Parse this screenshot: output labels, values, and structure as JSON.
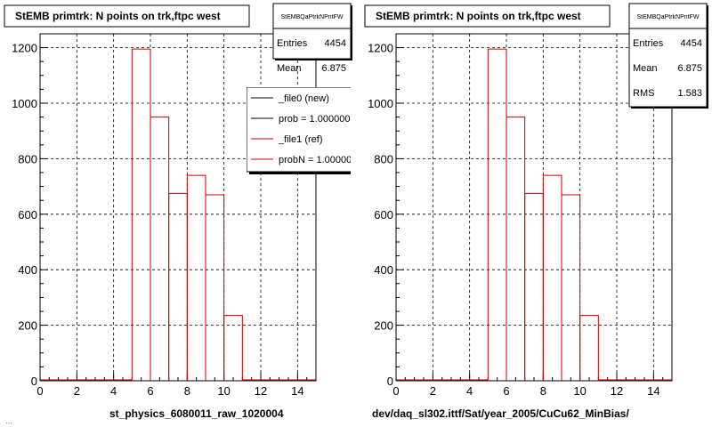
{
  "footer_note": "…",
  "chart_data": [
    {
      "type": "bar",
      "title": "StEMB primtrk: N points on trk,ftpc west",
      "xlabel": "",
      "ylabel": "",
      "xlim": [
        0,
        15
      ],
      "ylim": [
        0,
        1250
      ],
      "x_ticks": [
        0,
        2,
        4,
        6,
        8,
        10,
        12,
        14
      ],
      "y_ticks": [
        0,
        200,
        400,
        600,
        800,
        1000,
        1200
      ],
      "grid": true,
      "bin_edges": [
        0,
        1,
        2,
        3,
        4,
        5,
        6,
        7,
        8,
        9,
        10,
        11,
        12,
        13,
        14,
        15
      ],
      "series": [
        {
          "name": "_file1 (ref)",
          "color": "#cc0000",
          "values": [
            0,
            0,
            0,
            0,
            0,
            1195,
            950,
            675,
            740,
            670,
            235,
            0,
            0,
            0,
            0
          ]
        }
      ],
      "stats": {
        "name": "StEMBQaPtrkNPntFW",
        "rows": [
          {
            "label": "Entries",
            "value": "4454"
          },
          {
            "label": "Mean",
            "value": "6.875"
          }
        ]
      },
      "legend": {
        "placement": "top-right",
        "entries": [
          {
            "label": "_file0 (new)",
            "color": "#000000"
          },
          {
            "label": "prob = 1.000000",
            "color": "#000000"
          },
          {
            "label": "_file1 (ref)",
            "color": "#cc0000"
          },
          {
            "label": "probN = 1.000000",
            "color": "#cc0000"
          }
        ]
      },
      "caption": "st_physics_6080011_raw_1020004"
    },
    {
      "type": "bar",
      "title": "StEMB primtrk: N points on trk,ftpc west",
      "xlabel": "",
      "ylabel": "",
      "xlim": [
        0,
        15
      ],
      "ylim": [
        0,
        1250
      ],
      "x_ticks": [
        0,
        2,
        4,
        6,
        8,
        10,
        12,
        14
      ],
      "y_ticks": [
        0,
        200,
        400,
        600,
        800,
        1000,
        1200
      ],
      "grid": true,
      "bin_edges": [
        0,
        1,
        2,
        3,
        4,
        5,
        6,
        7,
        8,
        9,
        10,
        11,
        12,
        13,
        14,
        15
      ],
      "series": [
        {
          "color": "#cc0000",
          "values": [
            0,
            0,
            0,
            0,
            0,
            1195,
            950,
            675,
            740,
            670,
            235,
            0,
            0,
            0,
            0
          ]
        }
      ],
      "stats": {
        "name": "StEMBQaPtrkNPntFW",
        "rows": [
          {
            "label": "Entries",
            "value": "4454"
          },
          {
            "label": "Mean",
            "value": "6.875"
          },
          {
            "label": "RMS",
            "value": "1.583"
          }
        ]
      },
      "caption": "dev/daq_sl302.ittf/Sat/year_2005/CuCu62_MinBias/"
    }
  ]
}
